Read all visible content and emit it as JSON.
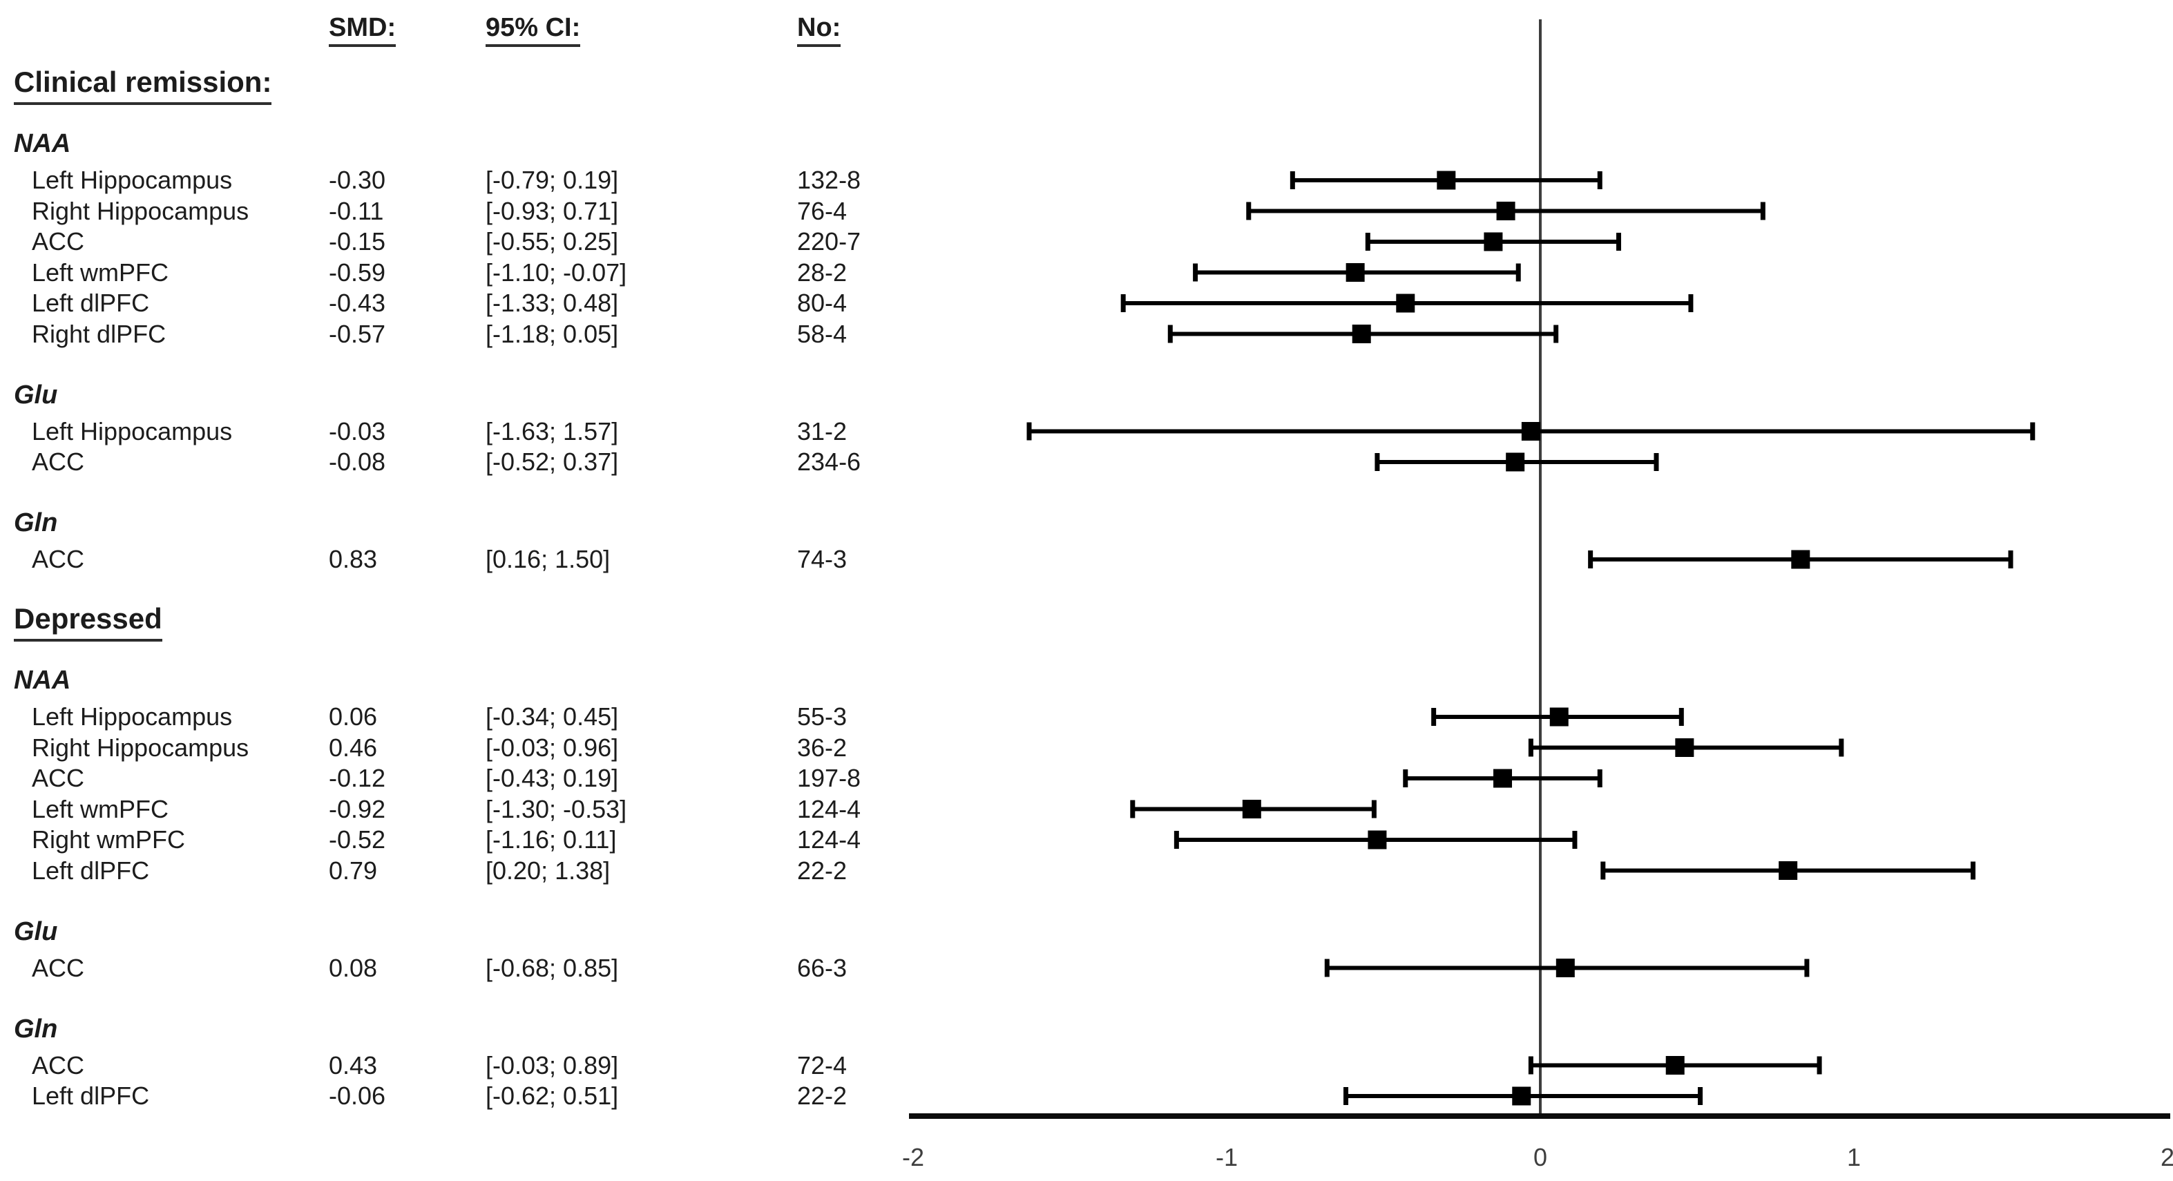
{
  "header": {
    "smd": "SMD:",
    "ci": "95% CI:",
    "no": "No:"
  },
  "chart_data": {
    "type": "forest",
    "title": "",
    "xlabel": "",
    "xlim": [
      -2,
      2
    ],
    "x_ticks": [
      -2,
      -1,
      0,
      1,
      2
    ],
    "zero_line": 0,
    "grid": false,
    "marker": "black-square",
    "columns": [
      "SMD:",
      "95% CI:",
      "No:"
    ],
    "sections": [
      {
        "title": "Clinical remission:",
        "groups": [
          {
            "name": "NAA",
            "rows": [
              {
                "label": "Left Hippocampus",
                "smd": -0.3,
                "ci": [
                  -0.79,
                  0.19
                ],
                "no": "132-8"
              },
              {
                "label": "Right Hippocampus",
                "smd": -0.11,
                "ci": [
                  -0.93,
                  0.71
                ],
                "no": "76-4"
              },
              {
                "label": "ACC",
                "smd": -0.15,
                "ci": [
                  -0.55,
                  0.25
                ],
                "no": "220-7"
              },
              {
                "label": "Left wmPFC",
                "smd": -0.59,
                "ci": [
                  -1.1,
                  -0.07
                ],
                "no": "28-2"
              },
              {
                "label": "Left dlPFC",
                "smd": -0.43,
                "ci": [
                  -1.33,
                  0.48
                ],
                "no": "80-4"
              },
              {
                "label": "Right dlPFC",
                "smd": -0.57,
                "ci": [
                  -1.18,
                  0.05
                ],
                "no": "58-4"
              }
            ]
          },
          {
            "name": "Glu",
            "rows": [
              {
                "label": "Left Hippocampus",
                "smd": -0.03,
                "ci": [
                  -1.63,
                  1.57
                ],
                "no": "31-2"
              },
              {
                "label": "ACC",
                "smd": -0.08,
                "ci": [
                  -0.52,
                  0.37
                ],
                "no": "234-6"
              }
            ]
          },
          {
            "name": "Gln",
            "rows": [
              {
                "label": "ACC",
                "smd": 0.83,
                "ci": [
                  0.16,
                  1.5
                ],
                "no": "74-3"
              }
            ]
          }
        ]
      },
      {
        "title": "Depressed",
        "groups": [
          {
            "name": "NAA",
            "rows": [
              {
                "label": "Left Hippocampus",
                "smd": 0.06,
                "ci": [
                  -0.34,
                  0.45
                ],
                "no": "55-3"
              },
              {
                "label": "Right Hippocampus",
                "smd": 0.46,
                "ci": [
                  -0.03,
                  0.96
                ],
                "no": "36-2"
              },
              {
                "label": "ACC",
                "smd": -0.12,
                "ci": [
                  -0.43,
                  0.19
                ],
                "no": "197-8"
              },
              {
                "label": "Left wmPFC",
                "smd": -0.92,
                "ci": [
                  -1.3,
                  -0.53
                ],
                "no": "124-4"
              },
              {
                "label": "Right wmPFC",
                "smd": -0.52,
                "ci": [
                  -1.16,
                  0.11
                ],
                "no": "124-4"
              },
              {
                "label": "Left dlPFC",
                "smd": 0.79,
                "ci": [
                  0.2,
                  1.38
                ],
                "no": "22-2"
              }
            ]
          },
          {
            "name": "Glu",
            "rows": [
              {
                "label": "ACC",
                "smd": 0.08,
                "ci": [
                  -0.68,
                  0.85
                ],
                "no": "66-3"
              }
            ]
          },
          {
            "name": "Gln",
            "rows": [
              {
                "label": "ACC",
                "smd": 0.43,
                "ci": [
                  -0.03,
                  0.89
                ],
                "no": "72-4"
              },
              {
                "label": "Left dlPFC",
                "smd": -0.06,
                "ci": [
                  -0.62,
                  0.51
                ],
                "no": "22-2"
              }
            ]
          }
        ]
      }
    ]
  }
}
